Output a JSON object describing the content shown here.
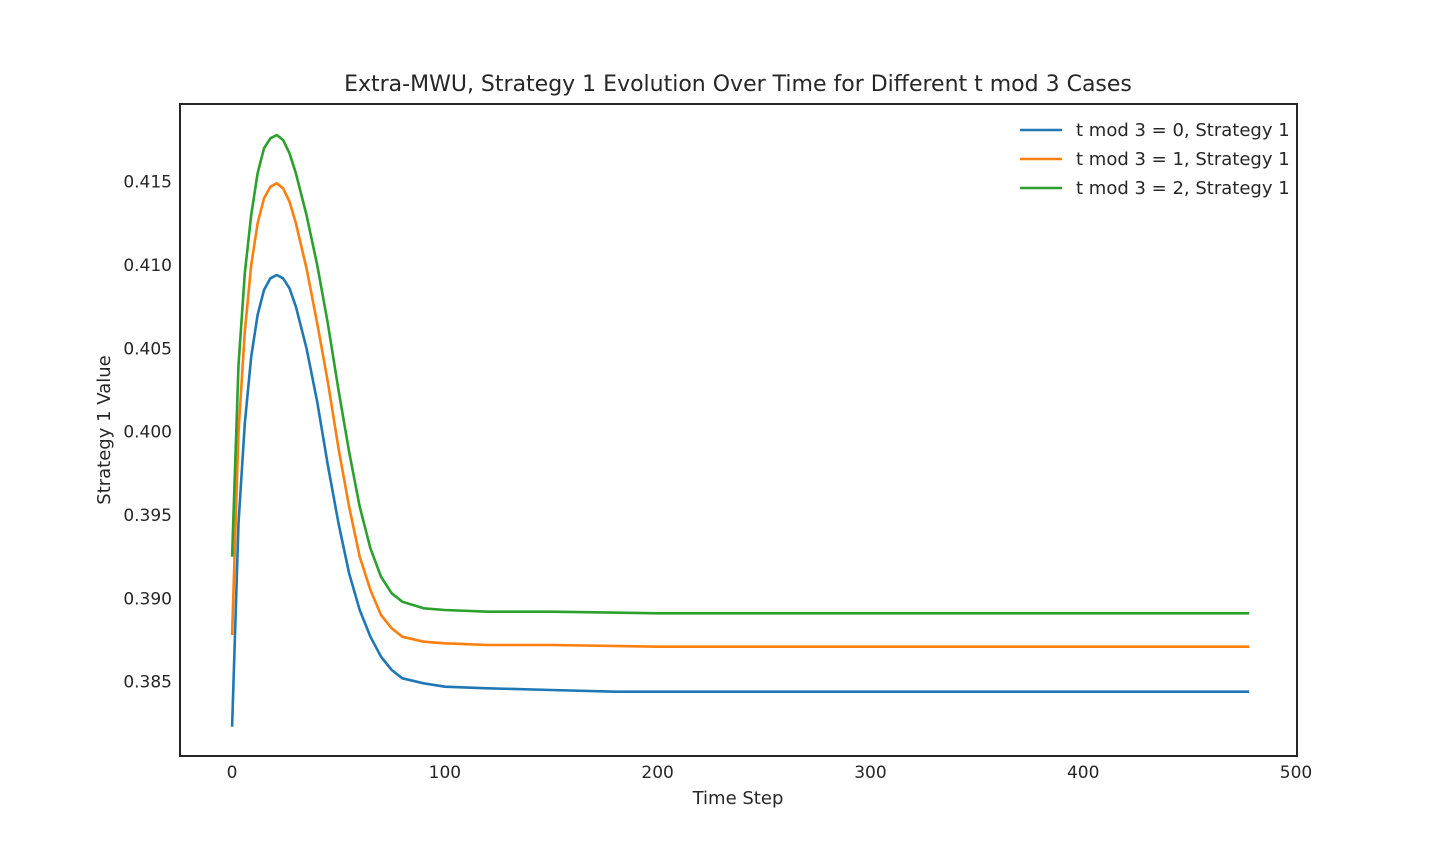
{
  "chart_data": {
    "type": "line",
    "title": "Extra-MWU, Strategy 1 Evolution Over Time for Different t mod 3 Cases",
    "xlabel": "Time Step",
    "ylabel": "Strategy 1 Value",
    "xlim": [
      -24,
      500
    ],
    "ylim": [
      0.3806,
      0.4196
    ],
    "xticks": [
      0,
      100,
      200,
      300,
      400,
      500
    ],
    "yticks": [
      0.385,
      0.39,
      0.395,
      0.4,
      0.405,
      0.41,
      0.415
    ],
    "xtick_labels": [
      "0",
      "100",
      "200",
      "300",
      "400",
      "500"
    ],
    "ytick_labels": [
      "0.385",
      "0.390",
      "0.395",
      "0.400",
      "0.405",
      "0.410",
      "0.415"
    ],
    "grid": false,
    "legend_position": "top-right",
    "series": [
      {
        "name": "t mod 3 = 0, Strategy 1",
        "color": "#1f77b4",
        "points": [
          [
            0,
            0.3823
          ],
          [
            3,
            0.3945
          ],
          [
            6,
            0.4005
          ],
          [
            9,
            0.4045
          ],
          [
            12,
            0.407
          ],
          [
            15,
            0.4085
          ],
          [
            18,
            0.4092
          ],
          [
            21,
            0.4094
          ],
          [
            24,
            0.4092
          ],
          [
            27,
            0.4086
          ],
          [
            30,
            0.4075
          ],
          [
            35,
            0.405
          ],
          [
            40,
            0.4018
          ],
          [
            45,
            0.398
          ],
          [
            50,
            0.3945
          ],
          [
            55,
            0.3915
          ],
          [
            60,
            0.3893
          ],
          [
            65,
            0.3877
          ],
          [
            70,
            0.3865
          ],
          [
            75,
            0.3857
          ],
          [
            80,
            0.3852
          ],
          [
            90,
            0.3849
          ],
          [
            100,
            0.3847
          ],
          [
            120,
            0.3846
          ],
          [
            150,
            0.3845
          ],
          [
            180,
            0.3844
          ],
          [
            200,
            0.3844
          ],
          [
            250,
            0.3844
          ],
          [
            300,
            0.3844
          ],
          [
            400,
            0.3844
          ],
          [
            478,
            0.3844
          ]
        ]
      },
      {
        "name": "t mod 3 = 1, Strategy 1",
        "color": "#ff7f0e",
        "points": [
          [
            0,
            0.3878
          ],
          [
            3,
            0.4
          ],
          [
            6,
            0.406
          ],
          [
            9,
            0.41
          ],
          [
            12,
            0.4125
          ],
          [
            15,
            0.414
          ],
          [
            18,
            0.4147
          ],
          [
            21,
            0.4149
          ],
          [
            24,
            0.4146
          ],
          [
            27,
            0.4138
          ],
          [
            30,
            0.4125
          ],
          [
            35,
            0.4098
          ],
          [
            40,
            0.4065
          ],
          [
            45,
            0.403
          ],
          [
            50,
            0.399
          ],
          [
            55,
            0.3955
          ],
          [
            60,
            0.3925
          ],
          [
            65,
            0.3905
          ],
          [
            70,
            0.389
          ],
          [
            75,
            0.3882
          ],
          [
            80,
            0.3877
          ],
          [
            90,
            0.3874
          ],
          [
            100,
            0.3873
          ],
          [
            120,
            0.3872
          ],
          [
            150,
            0.3872
          ],
          [
            200,
            0.3871
          ],
          [
            250,
            0.3871
          ],
          [
            300,
            0.3871
          ],
          [
            400,
            0.3871
          ],
          [
            478,
            0.3871
          ]
        ]
      },
      {
        "name": "t mod 3 = 2, Strategy 1",
        "color": "#2ca02c",
        "points": [
          [
            0,
            0.3925
          ],
          [
            3,
            0.404
          ],
          [
            6,
            0.4095
          ],
          [
            9,
            0.413
          ],
          [
            12,
            0.4155
          ],
          [
            15,
            0.417
          ],
          [
            18,
            0.4176
          ],
          [
            21,
            0.4178
          ],
          [
            24,
            0.4175
          ],
          [
            27,
            0.4167
          ],
          [
            30,
            0.4155
          ],
          [
            35,
            0.413
          ],
          [
            40,
            0.41
          ],
          [
            45,
            0.4065
          ],
          [
            50,
            0.4025
          ],
          [
            55,
            0.3988
          ],
          [
            60,
            0.3955
          ],
          [
            65,
            0.393
          ],
          [
            70,
            0.3913
          ],
          [
            75,
            0.3903
          ],
          [
            80,
            0.3898
          ],
          [
            90,
            0.3894
          ],
          [
            100,
            0.3893
          ],
          [
            120,
            0.3892
          ],
          [
            150,
            0.3892
          ],
          [
            200,
            0.3891
          ],
          [
            250,
            0.3891
          ],
          [
            300,
            0.3891
          ],
          [
            400,
            0.3891
          ],
          [
            478,
            0.3891
          ]
        ]
      }
    ]
  }
}
